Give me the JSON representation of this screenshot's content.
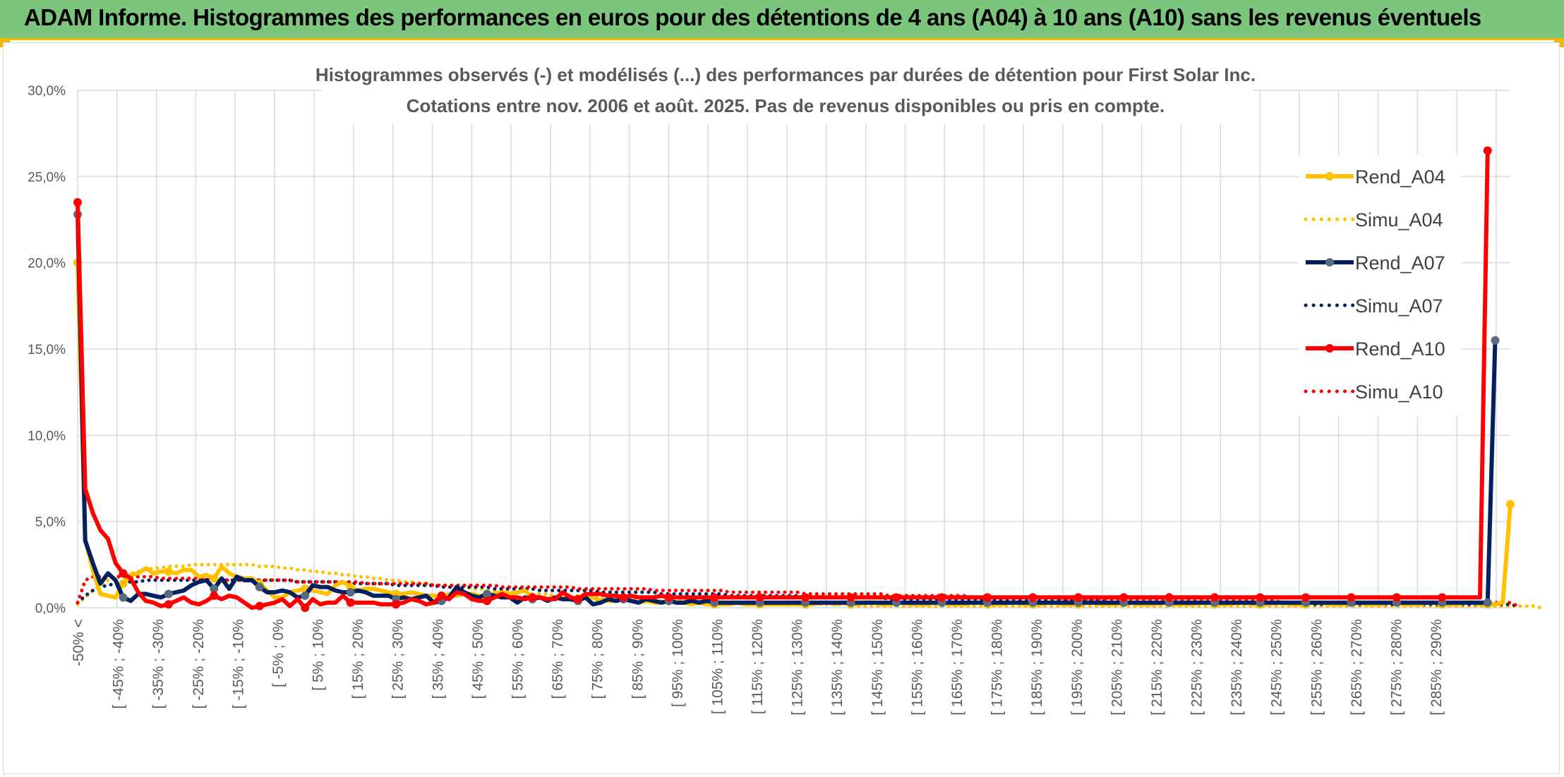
{
  "header": {
    "title": "ADAM Informe. Histogrammes des performances en euros pour des détentions de 4 ans (A04) à 10 ans (A10) sans les revenus éventuels"
  },
  "colors": {
    "banner": "#7cc57c",
    "accent": "#f2b800",
    "a04": "#FFC000",
    "a07": "#002060",
    "a07_marker": "#5a6a80",
    "a10": "#FF0000"
  },
  "chart_data": {
    "type": "line",
    "title": "Histogrammes observés (-) et modélisés (...) des performances par durées de détention pour First Solar Inc.",
    "subtitle": "Cotations entre nov. 2006 et août. 2025. Pas de revenus disponibles ou pris en compte.",
    "xlabel": "",
    "ylabel": "",
    "ylim": [
      0,
      30
    ],
    "yticks": [
      "0,0%",
      "5,0%",
      "10,0%",
      "15,0%",
      "20,0%",
      "25,0%",
      "30,0%"
    ],
    "grid": true,
    "legend_position": "right",
    "x_tick_labels": [
      "-50% <",
      "[ -45% ; -40%",
      "[ -35% ; -30%",
      "[ -25% ; -20%",
      "[ -15% ; -10%",
      "[ -5% ; 0%",
      "[ 5% ; 10%",
      "[ 15% ; 20%",
      "[ 25% ; 30%",
      "[ 35% ; 40%",
      "[ 45% ; 50%",
      "[ 55% ; 60%",
      "[ 65% ; 70%",
      "[ 75% ; 80%",
      "[ 85% ; 90%",
      "[ 95% ; 100%",
      "[ 105% ; 110%",
      "[ 115% ; 120%",
      "[ 125% ; 130%",
      "[ 135% ; 140%",
      "[ 145% ; 150%",
      "[ 155% ; 160%",
      "[ 165% ; 170%",
      "[ 175% ; 180%",
      "[ 185% ; 190%",
      "[ 195% ; 200%",
      "[ 205% ; 210%",
      "[ 215% ; 220%",
      "[ 225% ; 230%",
      "[ 235% ; 240%",
      "[ 245% ; 250%",
      "[ 255% ; 260%",
      "[ 265% ; 270%",
      "[ 275% ; 280%",
      "[ 285% ; 290%"
    ],
    "series": [
      {
        "name": "Rend_A04",
        "style": "solid",
        "color": "#FFC000",
        "values": [
          20.0,
          4.0,
          2.2,
          0.8,
          0.7,
          0.6,
          1.4,
          1.9,
          2.0,
          2.3,
          2.0,
          2.1,
          2.1,
          2.0,
          2.2,
          2.2,
          1.8,
          1.9,
          1.7,
          2.4,
          2.0,
          1.8,
          1.7,
          1.7,
          1.4,
          1.0,
          0.6,
          0.6,
          0.9,
          1.0,
          1.1,
          1.0,
          0.9,
          0.8,
          1.3,
          1.5,
          1.2,
          1.0,
          1.1,
          1.1,
          1.0,
          0.9,
          0.8,
          0.8,
          0.9,
          0.8,
          0.7,
          0.7,
          0.6,
          0.8,
          0.7,
          0.8,
          0.8,
          0.7,
          0.7,
          0.8,
          0.9,
          0.8,
          0.9,
          1.0,
          0.6,
          0.6,
          0.5,
          0.6,
          0.5,
          0.5,
          0.4,
          0.6,
          0.6,
          0.4,
          0.4,
          0.4,
          0.5,
          0.4,
          0.3,
          0.4,
          0.3,
          0.3,
          0.4,
          0.3,
          0.3,
          0.2,
          0.3,
          0.2,
          0.2,
          0.2,
          0.2,
          0.3,
          0.2,
          0.2,
          0.2,
          0.2,
          0.2,
          0.2,
          0.2,
          0.2,
          0.2,
          0.2,
          0.3,
          0.3,
          0.2,
          0.3,
          0.2,
          0.2,
          0.3,
          0.3,
          0.2,
          0.2,
          0.3,
          0.3,
          0.2,
          0.2,
          0.2,
          0.3,
          0.3,
          0.2,
          0.2,
          0.2,
          0.3,
          0.3,
          0.2,
          0.2,
          0.2,
          0.3,
          0.3,
          0.2,
          0.2,
          0.2,
          0.3,
          0.3,
          0.2,
          0.2,
          0.2,
          0.3,
          0.3,
          0.2,
          0.2,
          0.2,
          0.3,
          0.3,
          0.2,
          0.2,
          0.2,
          0.3,
          0.3,
          0.2,
          0.2,
          0.2,
          0.3,
          0.3,
          0.2,
          0.2,
          0.2,
          0.3,
          0.3,
          0.2,
          0.2,
          0.2,
          0.3,
          0.3,
          0.2,
          0.2,
          0.2,
          0.3,
          0.3,
          0.2,
          0.2,
          0.2,
          0.3,
          0.3,
          0.2,
          0.2,
          0.2,
          0.3,
          0.3,
          0.2,
          0.2,
          0.2,
          0.3,
          0.3,
          0.2,
          0.2,
          0.2,
          0.3,
          0.3,
          0.2,
          0.2,
          0.2,
          0.3,
          6.0
        ]
      },
      {
        "name": "Simu_A04",
        "style": "dotted",
        "color": "#FFC000",
        "values": [
          0.2,
          0.6,
          1.0,
          1.3,
          1.6,
          1.8,
          1.9,
          2.0,
          2.1,
          2.2,
          2.3,
          2.3,
          2.4,
          2.4,
          2.4,
          2.5,
          2.5,
          2.5,
          2.5,
          2.5,
          2.5,
          2.5,
          2.5,
          2.5,
          2.4,
          2.4,
          2.4,
          2.3,
          2.3,
          2.2,
          2.2,
          2.1,
          2.1,
          2.0,
          2.0,
          1.9,
          1.9,
          1.8,
          1.8,
          1.7,
          1.7,
          1.6,
          1.6,
          1.5,
          1.5,
          1.4,
          1.4,
          1.3,
          1.3,
          1.2,
          1.2,
          1.2,
          1.1,
          1.1,
          1.0,
          1.0,
          1.0,
          0.9,
          0.9,
          0.9,
          0.8,
          0.8,
          0.8,
          0.7,
          0.7,
          0.7,
          0.7,
          0.6,
          0.6,
          0.6,
          0.6,
          0.5,
          0.5,
          0.5,
          0.5,
          0.5,
          0.4,
          0.4,
          0.4,
          0.4,
          0.4,
          0.4,
          0.3,
          0.3,
          0.3,
          0.3,
          0.3,
          0.3,
          0.3,
          0.3,
          0.2,
          0.2,
          0.2,
          0.2,
          0.2,
          0.2,
          0.2,
          0.2,
          0.2,
          0.2,
          0.2,
          0.2,
          0.2,
          0.1,
          0.1,
          0.1,
          0.1,
          0.1,
          0.1,
          0.1,
          0.1,
          0.1,
          0.1,
          0.1,
          0.1,
          0.1,
          0.1,
          0.1,
          0.1,
          0.1,
          0.1,
          0.1,
          0.1,
          0.1,
          0.1,
          0.1,
          0.1,
          0.1,
          0.1,
          0.1,
          0.1,
          0.1,
          0.1,
          0.1,
          0.1,
          0.1,
          0.1,
          0.1,
          0.1,
          0.1,
          0.1,
          0.1,
          0.1,
          0.1,
          0.1,
          0.1,
          0.1,
          0.1,
          0.1,
          0.1,
          0.1,
          0.1,
          0.1,
          0.1,
          0.1,
          0.1,
          0.1,
          0.1,
          0.1,
          0.1,
          0.1,
          0.1,
          0.1,
          0.1,
          0.1,
          0.1,
          0.1,
          0.1,
          0.1,
          0.1,
          0.1,
          0.1,
          0.1,
          0.1,
          0.1,
          0.1,
          0.1,
          0.1,
          0.1,
          0.1,
          0.1,
          0.1,
          0.1,
          0.1,
          0.1,
          0.1,
          0.1,
          0.1,
          0.1,
          0.1,
          0.1,
          0.1,
          0.1,
          0.0
        ]
      },
      {
        "name": "Rend_A07",
        "style": "solid",
        "color": "#002060",
        "values": [
          22.8,
          3.9,
          2.6,
          1.4,
          2.0,
          1.6,
          0.6,
          0.4,
          0.8,
          0.8,
          0.7,
          0.6,
          0.8,
          0.9,
          1.0,
          1.3,
          1.5,
          1.6,
          1.1,
          1.7,
          1.1,
          1.8,
          1.6,
          1.6,
          1.2,
          0.9,
          0.9,
          1.0,
          0.9,
          0.6,
          0.7,
          1.3,
          1.2,
          1.2,
          1.0,
          0.9,
          0.9,
          1.0,
          0.9,
          0.7,
          0.7,
          0.7,
          0.5,
          0.6,
          0.5,
          0.6,
          0.7,
          0.3,
          0.4,
          0.6,
          1.2,
          0.9,
          0.7,
          0.6,
          0.8,
          0.7,
          0.6,
          0.6,
          0.3,
          0.6,
          0.5,
          0.6,
          0.4,
          0.6,
          0.5,
          0.5,
          0.4,
          0.6,
          0.2,
          0.3,
          0.5,
          0.4,
          0.5,
          0.4,
          0.3,
          0.5,
          0.4,
          0.3,
          0.4,
          0.3,
          0.3,
          0.4,
          0.3,
          0.4,
          0.3,
          0.3,
          0.3,
          0.3,
          0.3,
          0.3,
          0.3,
          0.3,
          0.3,
          0.3,
          0.3,
          0.3,
          0.3,
          0.3,
          0.3,
          0.3,
          0.3,
          0.3,
          0.3,
          0.3,
          0.3,
          0.3,
          0.3,
          0.3,
          0.3,
          0.3,
          0.3,
          0.3,
          0.3,
          0.3,
          0.3,
          0.3,
          0.3,
          0.3,
          0.3,
          0.3,
          0.3,
          0.3,
          0.3,
          0.3,
          0.3,
          0.3,
          0.3,
          0.3,
          0.3,
          0.3,
          0.3,
          0.3,
          0.3,
          0.3,
          0.3,
          0.3,
          0.3,
          0.3,
          0.3,
          0.3,
          0.3,
          0.3,
          0.3,
          0.3,
          0.3,
          0.3,
          0.3,
          0.3,
          0.3,
          0.3,
          0.3,
          0.3,
          0.3,
          0.3,
          0.3,
          0.3,
          0.3,
          0.3,
          0.3,
          0.3,
          0.3,
          0.3,
          0.3,
          0.3,
          0.3,
          0.3,
          0.3,
          0.3,
          0.3,
          0.3,
          0.3,
          0.3,
          0.3,
          0.3,
          0.3,
          0.3,
          0.3,
          0.3,
          0.3,
          0.3,
          0.3,
          0.3,
          0.3,
          0.3,
          0.3,
          0.3,
          0.3,
          15.5
        ]
      },
      {
        "name": "Simu_A07",
        "style": "dotted",
        "color": "#002060",
        "values": [
          0.3,
          0.7,
          1.0,
          1.2,
          1.3,
          1.4,
          1.5,
          1.5,
          1.5,
          1.6,
          1.6,
          1.6,
          1.6,
          1.6,
          1.6,
          1.6,
          1.6,
          1.6,
          1.6,
          1.6,
          1.6,
          1.6,
          1.6,
          1.6,
          1.6,
          1.6,
          1.6,
          1.6,
          1.6,
          1.5,
          1.5,
          1.5,
          1.5,
          1.5,
          1.5,
          1.5,
          1.4,
          1.4,
          1.4,
          1.4,
          1.4,
          1.4,
          1.3,
          1.3,
          1.3,
          1.3,
          1.3,
          1.3,
          1.2,
          1.2,
          1.2,
          1.2,
          1.2,
          1.2,
          1.2,
          1.1,
          1.1,
          1.1,
          1.1,
          1.1,
          1.1,
          1.0,
          1.0,
          1.0,
          1.0,
          1.0,
          1.0,
          1.0,
          1.0,
          0.9,
          0.9,
          0.9,
          0.9,
          0.9,
          0.9,
          0.9,
          0.9,
          0.8,
          0.8,
          0.8,
          0.8,
          0.8,
          0.8,
          0.8,
          0.8,
          0.8,
          0.7,
          0.7,
          0.7,
          0.7,
          0.7,
          0.7,
          0.7,
          0.7,
          0.7,
          0.7,
          0.6,
          0.6,
          0.6,
          0.6,
          0.6,
          0.6,
          0.6,
          0.6,
          0.6,
          0.6,
          0.6,
          0.5,
          0.5,
          0.5,
          0.5,
          0.5,
          0.5,
          0.5,
          0.5,
          0.5,
          0.5,
          0.5,
          0.5,
          0.5,
          0.4,
          0.4,
          0.4,
          0.4,
          0.4,
          0.4,
          0.4,
          0.4,
          0.4,
          0.4,
          0.4,
          0.4,
          0.4,
          0.4,
          0.4,
          0.4,
          0.3,
          0.3,
          0.3,
          0.3,
          0.3,
          0.3,
          0.3,
          0.3,
          0.3,
          0.3,
          0.3,
          0.3,
          0.3,
          0.3,
          0.3,
          0.3,
          0.3,
          0.3,
          0.3,
          0.3,
          0.3,
          0.3,
          0.3,
          0.3,
          0.3,
          0.3,
          0.3,
          0.2,
          0.2,
          0.2,
          0.2,
          0.2,
          0.2,
          0.2,
          0.2,
          0.2,
          0.2,
          0.2,
          0.2,
          0.2,
          0.2,
          0.2,
          0.2,
          0.2,
          0.2,
          0.2,
          0.2,
          0.2,
          0.2,
          0.2,
          0.2,
          0.2,
          0.2,
          0.2,
          0.1
        ]
      },
      {
        "name": "Rend_A10",
        "style": "solid",
        "color": "#FF0000",
        "values": [
          23.5,
          6.9,
          5.5,
          4.5,
          4.0,
          2.6,
          2.0,
          1.7,
          0.9,
          0.4,
          0.3,
          0.1,
          0.2,
          0.4,
          0.6,
          0.3,
          0.2,
          0.4,
          0.7,
          0.5,
          0.7,
          0.6,
          0.3,
          0.0,
          0.1,
          0.2,
          0.3,
          0.5,
          0.1,
          0.5,
          0.0,
          0.5,
          0.2,
          0.3,
          0.3,
          0.7,
          0.3,
          0.3,
          0.3,
          0.3,
          0.2,
          0.2,
          0.2,
          0.3,
          0.5,
          0.4,
          0.2,
          0.3,
          0.7,
          0.5,
          0.9,
          0.8,
          0.5,
          0.4,
          0.4,
          0.6,
          0.8,
          0.6,
          0.6,
          0.5,
          0.6,
          0.6,
          0.5,
          0.5,
          0.9,
          0.6,
          0.5,
          0.8,
          0.8,
          0.8,
          0.7,
          0.7,
          0.6,
          0.7,
          0.6,
          0.6,
          0.6,
          0.7,
          0.6,
          0.6,
          0.6,
          0.6,
          0.6,
          0.6,
          0.6,
          0.6,
          0.6,
          0.6,
          0.6,
          0.6,
          0.6,
          0.6,
          0.6,
          0.6,
          0.6,
          0.6,
          0.6,
          0.6,
          0.6,
          0.6,
          0.6,
          0.6,
          0.6,
          0.6,
          0.6,
          0.6,
          0.6,
          0.6,
          0.6,
          0.6,
          0.6,
          0.6,
          0.6,
          0.6,
          0.6,
          0.6,
          0.6,
          0.6,
          0.6,
          0.6,
          0.6,
          0.6,
          0.6,
          0.6,
          0.6,
          0.6,
          0.6,
          0.6,
          0.6,
          0.6,
          0.6,
          0.6,
          0.6,
          0.6,
          0.6,
          0.6,
          0.6,
          0.6,
          0.6,
          0.6,
          0.6,
          0.6,
          0.6,
          0.6,
          0.6,
          0.6,
          0.6,
          0.6,
          0.6,
          0.6,
          0.6,
          0.6,
          0.6,
          0.6,
          0.6,
          0.6,
          0.6,
          0.6,
          0.6,
          0.6,
          0.6,
          0.6,
          0.6,
          0.6,
          0.6,
          0.6,
          0.6,
          0.6,
          0.6,
          0.6,
          0.6,
          0.6,
          0.6,
          0.6,
          0.6,
          0.6,
          0.6,
          0.6,
          0.6,
          0.6,
          0.6,
          0.6,
          0.6,
          0.6,
          0.6,
          0.6,
          26.5
        ]
      },
      {
        "name": "Simu_A10",
        "style": "dotted",
        "color": "#FF0000",
        "values": [
          0.3,
          1.6,
          1.8,
          1.8,
          1.8,
          1.8,
          1.8,
          1.8,
          1.8,
          1.8,
          1.8,
          1.7,
          1.7,
          1.7,
          1.7,
          1.7,
          1.7,
          1.7,
          1.7,
          1.6,
          1.6,
          1.6,
          1.6,
          1.6,
          1.6,
          1.6,
          1.6,
          1.6,
          1.6,
          1.5,
          1.5,
          1.5,
          1.5,
          1.5,
          1.5,
          1.5,
          1.5,
          1.5,
          1.4,
          1.4,
          1.4,
          1.4,
          1.4,
          1.4,
          1.4,
          1.4,
          1.4,
          1.3,
          1.3,
          1.3,
          1.3,
          1.3,
          1.3,
          1.3,
          1.3,
          1.3,
          1.2,
          1.2,
          1.2,
          1.2,
          1.2,
          1.2,
          1.2,
          1.2,
          1.2,
          1.2,
          1.1,
          1.1,
          1.1,
          1.1,
          1.1,
          1.1,
          1.1,
          1.1,
          1.1,
          1.1,
          1.0,
          1.0,
          1.0,
          1.0,
          1.0,
          1.0,
          1.0,
          1.0,
          1.0,
          1.0,
          0.9,
          0.9,
          0.9,
          0.9,
          0.9,
          0.9,
          0.9,
          0.9,
          0.9,
          0.9,
          0.8,
          0.8,
          0.8,
          0.8,
          0.8,
          0.8,
          0.8,
          0.8,
          0.8,
          0.8,
          0.8,
          0.7,
          0.7,
          0.7,
          0.7,
          0.7,
          0.7,
          0.7,
          0.7,
          0.7,
          0.7,
          0.7,
          0.6,
          0.6,
          0.6,
          0.6,
          0.6,
          0.6,
          0.6,
          0.6,
          0.6,
          0.6,
          0.6,
          0.6,
          0.5,
          0.5,
          0.5,
          0.5,
          0.5,
          0.5,
          0.5,
          0.5,
          0.5,
          0.5,
          0.5,
          0.5,
          0.5,
          0.5,
          0.4,
          0.4,
          0.4,
          0.4,
          0.4,
          0.4,
          0.4,
          0.4,
          0.4,
          0.4,
          0.4,
          0.4,
          0.4,
          0.4,
          0.4,
          0.3,
          0.3,
          0.3,
          0.3,
          0.3,
          0.3,
          0.3,
          0.3,
          0.3,
          0.3,
          0.3,
          0.3,
          0.3,
          0.3,
          0.3,
          0.3,
          0.3,
          0.3,
          0.3,
          0.3,
          0.3,
          0.3,
          0.3,
          0.3,
          0.3,
          0.3,
          0.3,
          0.3,
          0.3,
          0.3,
          0.3,
          0.1
        ]
      }
    ]
  }
}
